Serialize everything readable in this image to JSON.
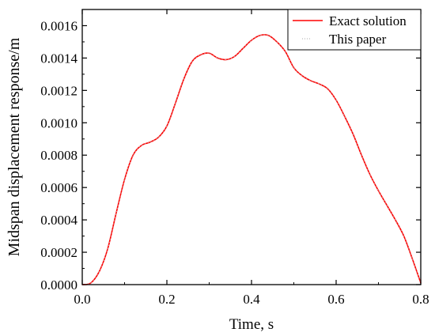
{
  "chart_data": {
    "type": "line",
    "xlabel": "Time, s",
    "ylabel": "Midspan displacement response/m",
    "xlim": [
      0.0,
      0.8
    ],
    "ylim": [
      0.0,
      0.0017
    ],
    "xticks": [
      "0.0",
      "0.2",
      "0.4",
      "0.6",
      "0.8"
    ],
    "yticks": [
      "0.0000",
      "0.0002",
      "0.0004",
      "0.0006",
      "0.0008",
      "0.0010",
      "0.0012",
      "0.0014",
      "0.0016"
    ],
    "grid": false,
    "legend_position": "top-right",
    "series": [
      {
        "name": "Exact solution",
        "style": "solid",
        "color": "#ff0000",
        "x": [
          0.0,
          0.02,
          0.04,
          0.06,
          0.08,
          0.1,
          0.12,
          0.14,
          0.16,
          0.18,
          0.2,
          0.22,
          0.24,
          0.26,
          0.28,
          0.3,
          0.32,
          0.34,
          0.36,
          0.38,
          0.4,
          0.42,
          0.44,
          0.46,
          0.48,
          0.5,
          0.52,
          0.54,
          0.56,
          0.58,
          0.6,
          0.62,
          0.64,
          0.66,
          0.68,
          0.7,
          0.72,
          0.74,
          0.76,
          0.78,
          0.8
        ],
        "y": [
          0.0,
          1e-05,
          8e-05,
          0.00022,
          0.00044,
          0.00065,
          0.0008,
          0.00086,
          0.00088,
          0.00091,
          0.00098,
          0.00112,
          0.00127,
          0.00138,
          0.00142,
          0.00143,
          0.0014,
          0.00139,
          0.00141,
          0.00146,
          0.00151,
          0.00154,
          0.00154,
          0.0015,
          0.00144,
          0.00134,
          0.00129,
          0.00126,
          0.00124,
          0.00121,
          0.00114,
          0.00104,
          0.00093,
          0.0008,
          0.00068,
          0.00058,
          0.00049,
          0.0004,
          0.0003,
          0.00016,
          1e-05
        ]
      },
      {
        "name": "This paper",
        "style": "dotted",
        "color": "#bbbbbb",
        "x": [
          0.0,
          0.02,
          0.04,
          0.06,
          0.08,
          0.1,
          0.12,
          0.14,
          0.16,
          0.18,
          0.2,
          0.22,
          0.24,
          0.26,
          0.28,
          0.3,
          0.32,
          0.34,
          0.36,
          0.38,
          0.4,
          0.42,
          0.44,
          0.46,
          0.48,
          0.5,
          0.52,
          0.54,
          0.56,
          0.58,
          0.6,
          0.62,
          0.64,
          0.66,
          0.68,
          0.7,
          0.72,
          0.74,
          0.76,
          0.78,
          0.8
        ],
        "y": [
          0.0,
          1e-05,
          8e-05,
          0.00022,
          0.00044,
          0.00065,
          0.0008,
          0.00086,
          0.00088,
          0.00091,
          0.00098,
          0.00112,
          0.00127,
          0.00138,
          0.00142,
          0.00143,
          0.0014,
          0.00139,
          0.00141,
          0.00146,
          0.00151,
          0.00154,
          0.00154,
          0.0015,
          0.00144,
          0.00134,
          0.00129,
          0.00126,
          0.00124,
          0.00121,
          0.00114,
          0.00104,
          0.00093,
          0.0008,
          0.00068,
          0.00058,
          0.00049,
          0.0004,
          0.0003,
          0.00016,
          1e-05
        ]
      }
    ]
  }
}
